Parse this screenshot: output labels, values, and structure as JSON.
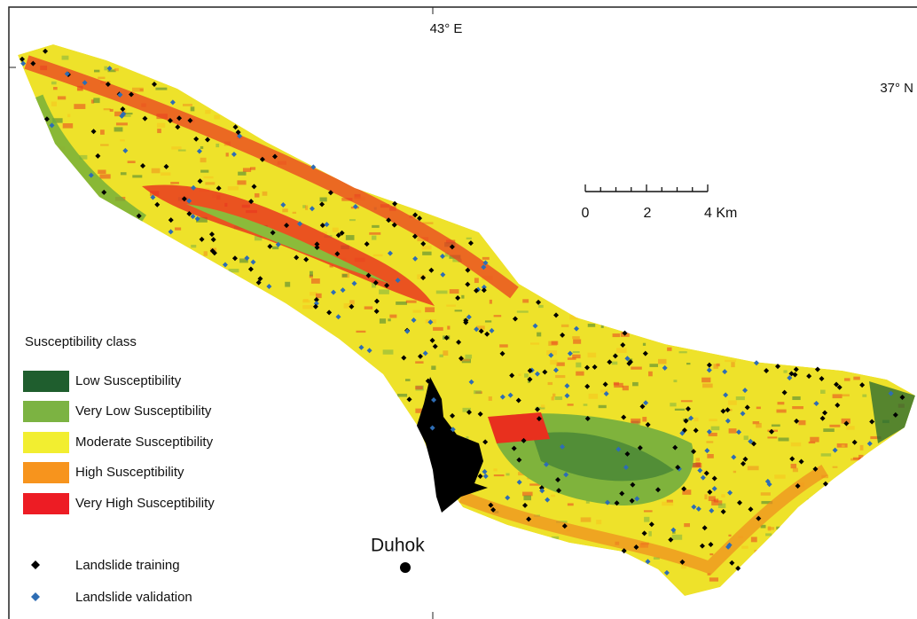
{
  "map": {
    "labels": {
      "longitude": "43° E",
      "latitude": "37° N",
      "city": "Duhok"
    },
    "scale_bar": {
      "labels": [
        "0",
        "2",
        "4 Km"
      ]
    },
    "legend": {
      "title": "Susceptibility class",
      "classes": [
        "Low Susceptibility",
        "Very Low Susceptibility",
        "Moderate Susceptibility",
        "High Susceptibility",
        "Very High Susceptibility"
      ],
      "points": [
        "Landslide training",
        "Landslide validation"
      ]
    }
  }
}
